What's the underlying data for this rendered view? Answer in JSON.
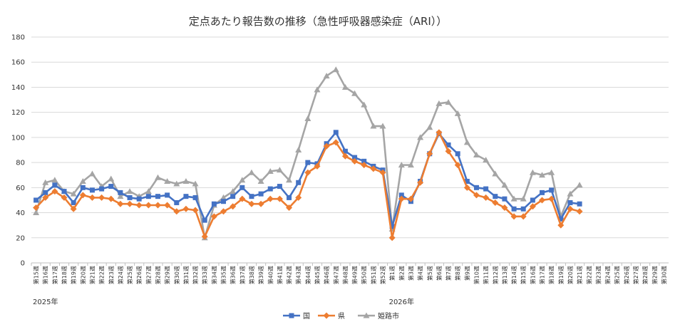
{
  "chart_data": {
    "type": "line",
    "title": "定点あたり報告数の推移（急性呼吸器感染症（ARI））",
    "ylim": [
      0,
      180
    ],
    "yticks": [
      0,
      20,
      40,
      60,
      80,
      100,
      120,
      140,
      160,
      180
    ],
    "grid": true,
    "legend_position": "bottom",
    "year_labels": [
      {
        "label": "2025年",
        "at_index": 0
      },
      {
        "label": "2026年",
        "at_index": 38
      }
    ],
    "categories": [
      "第15週",
      "第16週",
      "第17週",
      "第18週",
      "第19週",
      "第20週",
      "第21週",
      "第22週",
      "第23週",
      "第24週",
      "第25週",
      "第26週",
      "第27週",
      "第28週",
      "第29週",
      "第30週",
      "第31週",
      "第32週",
      "第33週",
      "第34週",
      "第35週",
      "第36週",
      "第37週",
      "第38週",
      "第39週",
      "第40週",
      "第41週",
      "第42週",
      "第43週",
      "第44週",
      "第45週",
      "第46週",
      "第47週",
      "第48週",
      "第49週",
      "第50週",
      "第51週",
      "第52週",
      "第1週",
      "第2週",
      "第3週",
      "第4週",
      "第5週",
      "第6週",
      "第7週",
      "第8週",
      "第9週",
      "第10週",
      "第11週",
      "第12週",
      "第13週",
      "第14週",
      "第15週",
      "第16週",
      "第17週",
      "第18週",
      "第19週",
      "第20週",
      "第21週",
      "第22週",
      "第23週",
      "第24週",
      "第25週",
      "第26週",
      "第27週",
      "第28週",
      "第29週",
      "第30週"
    ],
    "series": [
      {
        "name": "国",
        "color": "#4472C4",
        "marker": "square",
        "values": [
          50,
          56,
          62,
          57,
          48,
          60,
          58,
          59,
          61,
          56,
          52,
          51,
          53,
          53,
          54,
          48,
          53,
          52,
          34,
          47,
          49,
          53,
          60,
          53,
          55,
          59,
          61,
          52,
          64,
          80,
          79,
          95,
          104,
          89,
          84,
          81,
          77,
          74,
          29,
          54,
          49,
          65,
          87,
          103,
          94,
          87,
          65,
          60,
          59,
          53,
          51,
          43,
          43,
          50,
          56,
          58,
          35,
          48,
          47,
          null,
          null,
          null,
          null,
          null,
          null,
          null,
          null,
          null
        ]
      },
      {
        "name": "県",
        "color": "#ED7D31",
        "marker": "diamond",
        "values": [
          44,
          52,
          57,
          52,
          43,
          54,
          52,
          52,
          51,
          47,
          47,
          46,
          46,
          46,
          46,
          41,
          43,
          42,
          21,
          37,
          41,
          45,
          51,
          47,
          47,
          51,
          51,
          44,
          52,
          72,
          77,
          93,
          96,
          85,
          81,
          78,
          75,
          72,
          20,
          51,
          51,
          64,
          87,
          104,
          89,
          78,
          60,
          54,
          52,
          48,
          44,
          37,
          37,
          45,
          50,
          51,
          30,
          43,
          41,
          null,
          null,
          null,
          null,
          null,
          null,
          null,
          null,
          null
        ]
      },
      {
        "name": "姫路市",
        "color": "#A5A5A5",
        "marker": "triangle",
        "values": [
          40,
          64,
          66,
          57,
          55,
          65,
          71,
          61,
          67,
          53,
          57,
          53,
          57,
          68,
          65,
          63,
          65,
          63,
          20,
          46,
          52,
          57,
          66,
          72,
          65,
          73,
          74,
          66,
          90,
          115,
          138,
          149,
          154,
          140,
          135,
          126,
          109,
          109,
          27,
          78,
          78,
          100,
          108,
          127,
          128,
          119,
          96,
          86,
          82,
          71,
          62,
          51,
          51,
          72,
          70,
          72,
          37,
          55,
          62,
          null,
          null,
          null,
          null,
          null,
          null,
          null,
          null,
          null
        ]
      }
    ]
  }
}
